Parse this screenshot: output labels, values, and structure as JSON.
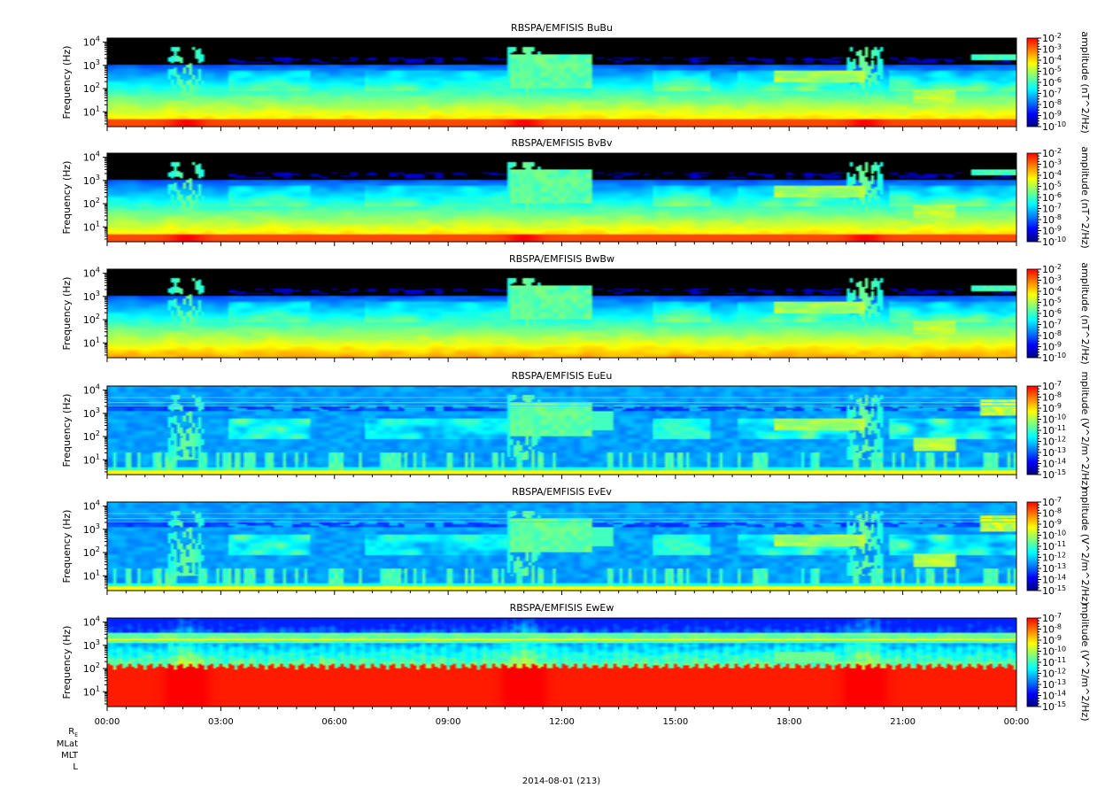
{
  "chart_data": {
    "type": "heatmap",
    "panels": [
      {
        "id": "bubu",
        "title": "RBSPA/EMFISIS  BuBu",
        "ylabel": "Frequency (Hz)",
        "cbar_label": "amplitude (nT^2/Hz)",
        "cbar_exp": [
          -2,
          -3,
          -4,
          -5,
          -6,
          -7,
          -8,
          -9,
          -10
        ],
        "hot_low": true,
        "efield": false,
        "ew": false
      },
      {
        "id": "bvbv",
        "title": "RBSPA/EMFISIS  BvBv",
        "ylabel": "Frequency (Hz)",
        "cbar_label": "amplitude (nT^2/Hz)",
        "cbar_exp": [
          -2,
          -3,
          -4,
          -5,
          -6,
          -7,
          -8,
          -9,
          -10
        ],
        "hot_low": true,
        "efield": false,
        "ew": false
      },
      {
        "id": "bwbw",
        "title": "RBSPA/EMFISIS  BwBw",
        "ylabel": "Frequency (Hz)",
        "cbar_label": "amplitude (nT^2/Hz)",
        "cbar_exp": [
          -2,
          -3,
          -4,
          -5,
          -6,
          -7,
          -8,
          -9,
          -10
        ],
        "hot_low": false,
        "efield": false,
        "ew": false
      },
      {
        "id": "eueu",
        "title": "RBSPA/EMFISIS  EuEu",
        "ylabel": "Frequency (Hz)",
        "cbar_label": "mplitude (V^2/m^2/Hz)",
        "cbar_exp": [
          -7,
          -8,
          -9,
          -10,
          -11,
          -12,
          -13,
          -14,
          -15
        ],
        "hot_low": false,
        "efield": true,
        "ew": false
      },
      {
        "id": "evev",
        "title": "RBSPA/EMFISIS  EvEv",
        "ylabel": "Frequency (Hz)",
        "cbar_label": "mplitude (V^2/m^2/Hz)",
        "cbar_exp": [
          -7,
          -8,
          -9,
          -10,
          -11,
          -12,
          -13,
          -14,
          -15
        ],
        "hot_low": false,
        "efield": true,
        "ew": false
      },
      {
        "id": "ewew",
        "title": "RBSPA/EMFISIS  EwEw",
        "ylabel": "Frequency (Hz)",
        "cbar_label": "mplitude (V^2/m^2/Hz)",
        "cbar_exp": [
          -7,
          -8,
          -9,
          -10,
          -11,
          -12,
          -13,
          -14,
          -15
        ],
        "hot_low": false,
        "efield": true,
        "ew": true
      }
    ],
    "y_ticks_exp": [
      4,
      3,
      2,
      1
    ],
    "y_axis": {
      "scale": "log",
      "range_hz": [
        2.3,
        15000
      ]
    },
    "x_axis": {
      "range_hours": [
        0,
        24
      ],
      "tick_labels": [
        "00:00",
        "03:00",
        "06:00",
        "09:00",
        "12:00",
        "15:00",
        "18:00",
        "21:00",
        "00:00"
      ]
    },
    "date_label": "2014-08-01 (213)",
    "orbit_labels": {
      "re_base": "R",
      "re_sub": "E",
      "mlat": "MLat",
      "mlt": "MLT",
      "l": "L"
    },
    "tick_base": "10",
    "colormap": [
      "#00007f",
      "#0000ff",
      "#0080ff",
      "#00ffff",
      "#7fff7f",
      "#ffff00",
      "#ff8000",
      "#ff0000"
    ],
    "features": {
      "chorus_band_hz": [
        1200,
        2400
      ],
      "hiss_core_hz": [
        80,
        600
      ],
      "perigee_hours": [
        2.1,
        11.0,
        20.0
      ],
      "emic_band": {
        "hours": [
          21.3,
          22.4
        ],
        "hz": [
          25,
          60
        ]
      }
    }
  }
}
